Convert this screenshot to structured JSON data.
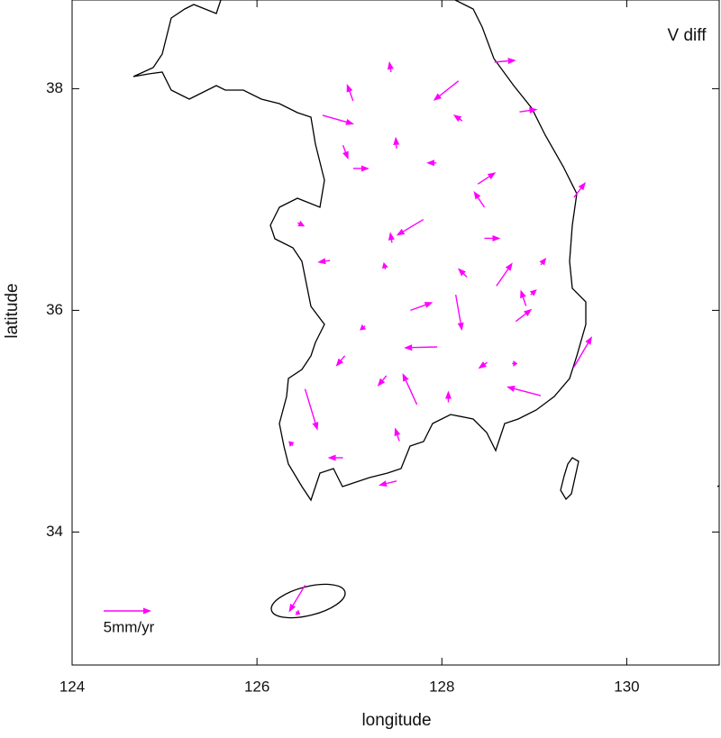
{
  "chart_data": {
    "type": "vector",
    "title": "V diff",
    "x_label": "longitude",
    "y_label": "latitude",
    "xlim": [
      124,
      131
    ],
    "ylim": [
      32.8,
      38.8
    ],
    "xticks": [
      124,
      126,
      128,
      130
    ],
    "yticks": [
      34,
      36,
      38
    ],
    "color": "#ff00ff",
    "reference": {
      "value": 5,
      "label": "5mm/yr"
    },
    "arrows": [
      {
        "lon": 128.57,
        "lat": 38.24,
        "east": 2.26,
        "north": 0.19
      },
      {
        "lon": 127.45,
        "lat": 38.15,
        "east": -0.19,
        "north": 1.13
      },
      {
        "lon": 127.04,
        "lat": 37.89,
        "east": -0.66,
        "north": 1.79
      },
      {
        "lon": 128.18,
        "lat": 38.07,
        "east": -2.64,
        "north": -2.08
      },
      {
        "lon": 126.71,
        "lat": 37.76,
        "east": 3.3,
        "north": -0.94
      },
      {
        "lon": 128.22,
        "lat": 37.71,
        "east": -0.94,
        "north": 0.66
      },
      {
        "lon": 128.84,
        "lat": 37.79,
        "east": 1.89,
        "north": 0.28
      },
      {
        "lon": 127.51,
        "lat": 37.46,
        "east": -0.09,
        "north": 1.23
      },
      {
        "lon": 126.93,
        "lat": 37.49,
        "east": 0.57,
        "north": -1.51
      },
      {
        "lon": 127.04,
        "lat": 37.28,
        "east": 1.7,
        "north": 0
      },
      {
        "lon": 127.94,
        "lat": 37.33,
        "east": -1.04,
        "north": 0
      },
      {
        "lon": 128.39,
        "lat": 37.14,
        "east": 1.89,
        "north": 1.23
      },
      {
        "lon": 129.43,
        "lat": 37.02,
        "east": 1.23,
        "north": 1.6
      },
      {
        "lon": 128.46,
        "lat": 36.93,
        "east": -1.13,
        "north": 1.7
      },
      {
        "lon": 127.8,
        "lat": 36.82,
        "east": -2.83,
        "north": -1.7
      },
      {
        "lon": 126.44,
        "lat": 36.79,
        "east": 0.75,
        "north": -0.38
      },
      {
        "lon": 127.46,
        "lat": 36.61,
        "east": -0.19,
        "north": 1.13
      },
      {
        "lon": 128.46,
        "lat": 36.65,
        "east": 1.7,
        "north": 0
      },
      {
        "lon": 126.79,
        "lat": 36.45,
        "east": -1.32,
        "north": -0.19
      },
      {
        "lon": 127.39,
        "lat": 36.37,
        "east": -0.19,
        "north": 0.75
      },
      {
        "lon": 128.59,
        "lat": 36.22,
        "east": 1.7,
        "north": 2.45
      },
      {
        "lon": 128.27,
        "lat": 36.3,
        "east": -0.94,
        "north": 0.94
      },
      {
        "lon": 129.07,
        "lat": 36.41,
        "east": 0.57,
        "north": 0.75
      },
      {
        "lon": 128.91,
        "lat": 36.04,
        "east": -0.57,
        "north": 1.7
      },
      {
        "lon": 128.96,
        "lat": 36.14,
        "east": 0.66,
        "north": 0.57
      },
      {
        "lon": 128.15,
        "lat": 36.14,
        "east": 0.66,
        "north": -3.77
      },
      {
        "lon": 127.66,
        "lat": 36.0,
        "east": 2.36,
        "north": 0.85
      },
      {
        "lon": 128.8,
        "lat": 35.9,
        "east": 1.7,
        "north": 1.32
      },
      {
        "lon": 127.17,
        "lat": 35.86,
        "east": -0.57,
        "north": -0.47
      },
      {
        "lon": 129.43,
        "lat": 35.49,
        "east": 1.89,
        "north": 3.21
      },
      {
        "lon": 127.95,
        "lat": 35.67,
        "east": -3.49,
        "north": -0.09
      },
      {
        "lon": 126.95,
        "lat": 35.59,
        "east": -0.94,
        "north": -1.13
      },
      {
        "lon": 128.49,
        "lat": 35.53,
        "east": -0.94,
        "north": -0.66
      },
      {
        "lon": 128.76,
        "lat": 35.52,
        "east": 0.57,
        "north": 0
      },
      {
        "lon": 127.4,
        "lat": 35.41,
        "east": -0.94,
        "north": -1.13
      },
      {
        "lon": 127.73,
        "lat": 35.15,
        "east": -1.51,
        "north": 3.3
      },
      {
        "lon": 128.07,
        "lat": 35.17,
        "east": 0,
        "north": 1.23
      },
      {
        "lon": 129.07,
        "lat": 35.23,
        "east": -3.58,
        "north": 0.94
      },
      {
        "lon": 126.52,
        "lat": 35.29,
        "east": 1.32,
        "north": -4.34
      },
      {
        "lon": 127.54,
        "lat": 34.82,
        "east": -0.47,
        "north": 1.42
      },
      {
        "lon": 126.93,
        "lat": 34.67,
        "east": -1.6,
        "north": 0
      },
      {
        "lon": 127.51,
        "lat": 34.46,
        "east": -1.89,
        "north": -0.47
      },
      {
        "lon": 126.39,
        "lat": 34.78,
        "east": -0.47,
        "north": 0.47
      },
      {
        "lon": 126.52,
        "lat": 33.52,
        "east": -1.7,
        "north": -2.83
      },
      {
        "lon": 126.42,
        "lat": 33.28,
        "east": 0.47,
        "north": -0.28
      }
    ]
  }
}
